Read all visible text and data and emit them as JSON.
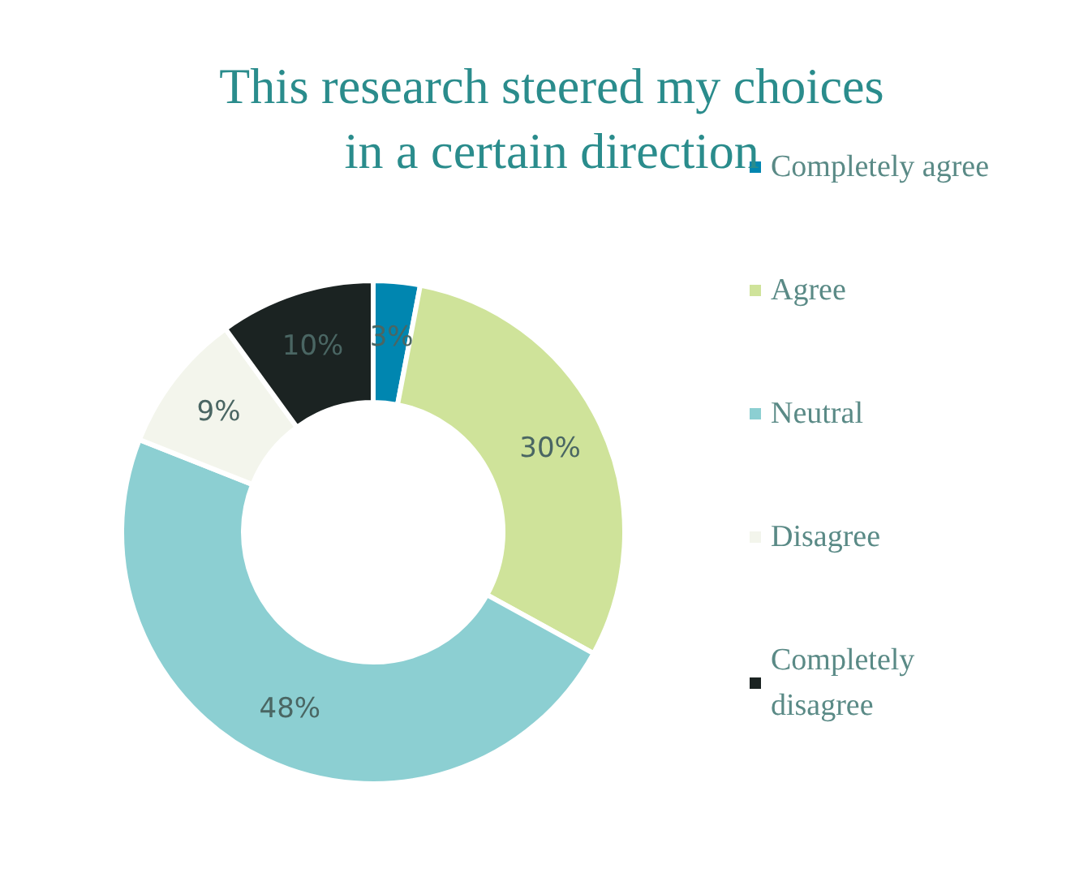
{
  "chart_data": {
    "type": "donut",
    "title": "This research steered my choices\nin a certain direction",
    "categories": [
      "Completely agree",
      "Agree",
      "Neutral",
      "Disagree",
      "Completely disagree"
    ],
    "values": [
      3,
      30,
      48,
      9,
      10
    ],
    "colors": [
      "#0086b0",
      "#cfe39a",
      "#8ccfd2",
      "#f3f5ec",
      "#1b2322"
    ],
    "value_labels": [
      "3%",
      "30%",
      "48%",
      "9%",
      "10%"
    ],
    "legend": "right"
  }
}
